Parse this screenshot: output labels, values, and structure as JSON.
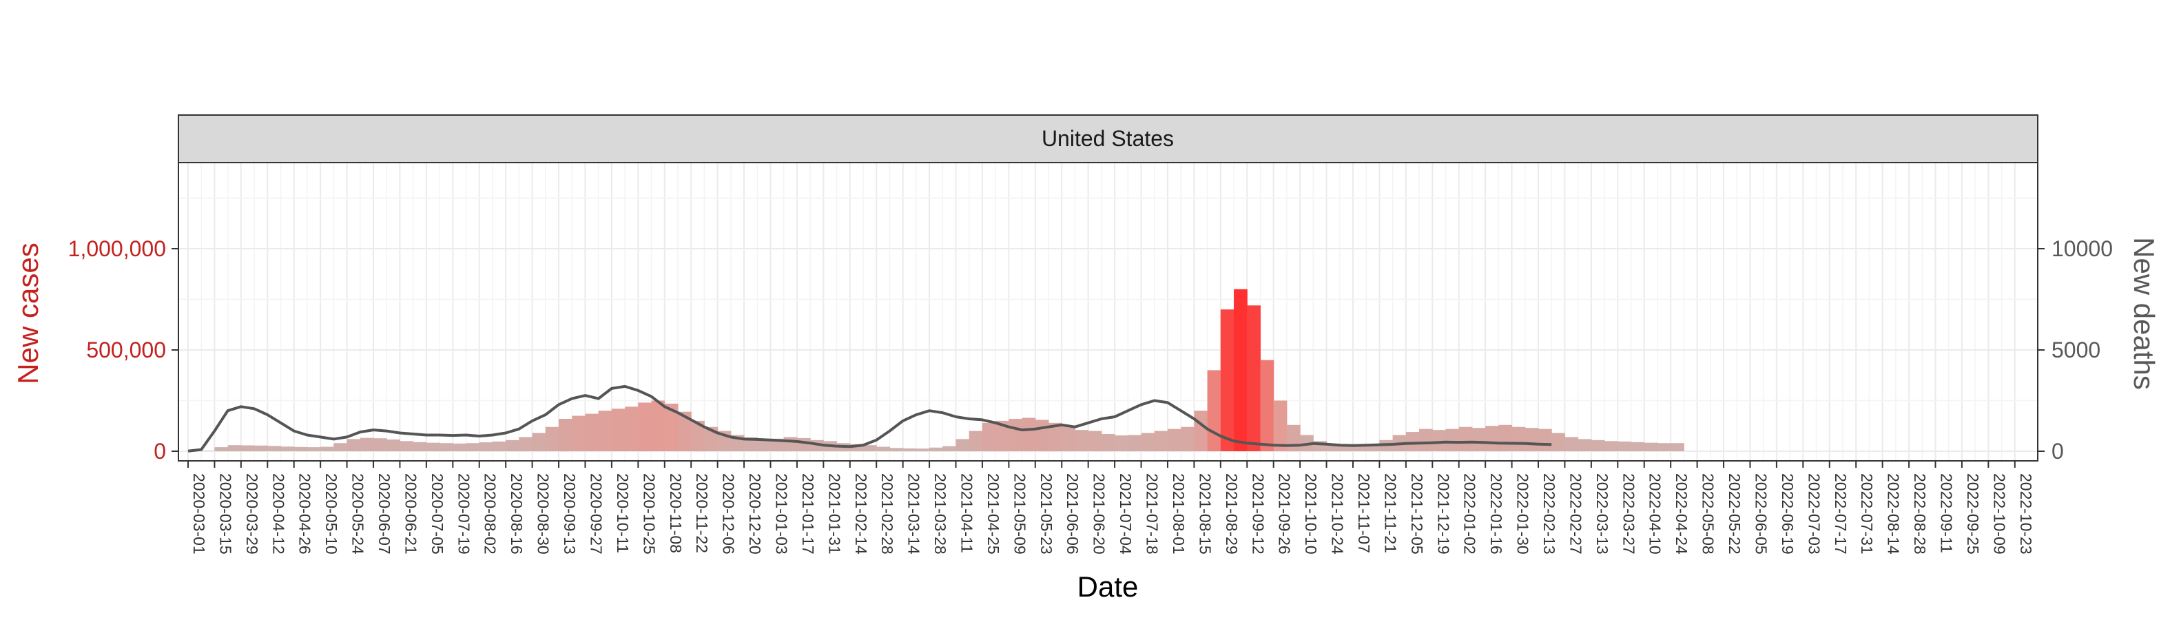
{
  "chart_data": {
    "type": "bar",
    "facet_label": "United States",
    "xlabel": "Date",
    "ylabel_left": "New cases",
    "ylabel_right": "New deaths",
    "x_range": [
      "2020-03-01",
      "2022-10-30"
    ],
    "ylim_left": [
      0,
      1400000
    ],
    "ylim_right": [
      0,
      14000
    ],
    "y_ticks_left": [
      0,
      500000,
      1000000
    ],
    "y_tick_labels_left": [
      "0",
      "500,000",
      "1,000,000"
    ],
    "y_ticks_right": [
      0,
      5000,
      10000
    ],
    "y_tick_labels_right": [
      "0",
      "5000",
      "10000"
    ],
    "x_tick_labels": [
      "2020-03-01",
      "2020-03-15",
      "2020-03-29",
      "2020-04-12",
      "2020-04-26",
      "2020-05-10",
      "2020-05-24",
      "2020-06-07",
      "2020-06-21",
      "2020-07-05",
      "2020-07-19",
      "2020-08-02",
      "2020-08-16",
      "2020-08-30",
      "2020-09-13",
      "2020-09-27",
      "2020-10-11",
      "2020-10-25",
      "2020-11-08",
      "2020-11-22",
      "2020-12-06",
      "2020-12-20",
      "2021-01-03",
      "2021-01-17",
      "2021-01-31",
      "2021-02-14",
      "2021-02-28",
      "2021-03-14",
      "2021-03-28",
      "2021-04-11",
      "2021-04-25",
      "2021-05-09",
      "2021-05-23",
      "2021-06-06",
      "2021-06-20",
      "2021-07-04",
      "2021-07-18",
      "2021-08-01",
      "2021-08-15",
      "2021-08-29",
      "2021-09-12",
      "2021-09-26",
      "2021-10-10",
      "2021-10-24",
      "2021-11-07",
      "2021-11-21",
      "2021-12-05",
      "2021-12-19",
      "2022-01-02",
      "2022-01-16",
      "2022-01-30",
      "2022-02-13",
      "2022-02-27",
      "2022-03-13",
      "2022-03-27",
      "2022-04-10",
      "2022-04-24",
      "2022-05-08",
      "2022-05-22",
      "2022-06-05",
      "2022-06-19",
      "2022-07-03",
      "2022-07-17",
      "2022-07-31",
      "2022-08-14",
      "2022-08-28",
      "2022-09-11",
      "2022-09-25",
      "2022-10-09",
      "2022-10-23"
    ],
    "series": [
      {
        "name": "New cases",
        "kind": "bar",
        "resolution": "weekly average (approximate)",
        "start": "2020-03-01",
        "step_days": 7,
        "values": [
          300,
          2000,
          20000,
          30000,
          29000,
          28000,
          26000,
          23000,
          21000,
          20000,
          22000,
          40000,
          60000,
          66000,
          64000,
          58000,
          50000,
          45000,
          42000,
          40000,
          38000,
          40000,
          44000,
          48000,
          55000,
          70000,
          90000,
          120000,
          160000,
          175000,
          185000,
          200000,
          210000,
          220000,
          240000,
          250000,
          235000,
          195000,
          150000,
          120000,
          100000,
          80000,
          68000,
          60000,
          62000,
          70000,
          65000,
          55000,
          50000,
          40000,
          35000,
          30000,
          22000,
          16000,
          14000,
          13000,
          18000,
          25000,
          60000,
          100000,
          140000,
          150000,
          160000,
          165000,
          155000,
          140000,
          125000,
          105000,
          100000,
          85000,
          78000,
          80000,
          90000,
          100000,
          110000,
          120000,
          200000,
          400000,
          700000,
          800000,
          720000,
          450000,
          250000,
          130000,
          80000,
          50000,
          38000,
          32000,
          30000,
          35000,
          55000,
          80000,
          95000,
          110000,
          105000,
          110000,
          120000,
          115000,
          125000,
          130000,
          120000,
          115000,
          110000,
          90000,
          70000,
          60000,
          55000,
          50000,
          48000,
          45000,
          42000,
          40000,
          40000
        ]
      },
      {
        "name": "New deaths",
        "kind": "line",
        "resolution": "weekly average (approximate)",
        "start": "2020-03-01",
        "step_days": 7,
        "values": [
          10,
          80,
          1000,
          2000,
          2200,
          2100,
          1800,
          1400,
          1000,
          800,
          700,
          600,
          700,
          950,
          1050,
          1000,
          900,
          850,
          800,
          800,
          780,
          800,
          750,
          800,
          900,
          1100,
          1500,
          1800,
          2300,
          2600,
          2750,
          2600,
          3100,
          3200,
          3000,
          2700,
          2200,
          1900,
          1550,
          1200,
          900,
          700,
          600,
          580,
          550,
          520,
          480,
          400,
          300,
          250,
          230,
          300,
          550,
          1000,
          1500,
          1800,
          2000,
          1900,
          1700,
          1600,
          1550,
          1400,
          1200,
          1050,
          1100,
          1200,
          1300,
          1200,
          1400,
          1600,
          1700,
          2000,
          2300,
          2500,
          2400,
          2000,
          1600,
          1100,
          750,
          500,
          400,
          350,
          300,
          280,
          300,
          380,
          350,
          300,
          280,
          300,
          320,
          340,
          380,
          400,
          420,
          450,
          440,
          450,
          430,
          400,
          390,
          380,
          350,
          330
        ]
      }
    ],
    "colors": {
      "left_axis": "#c4211f",
      "right_axis": "#595959",
      "bar_low": "#cdb3b0",
      "bar_mid": "#e89890",
      "bar_high": "#ff3030",
      "death_line": "#555555",
      "strip_fill": "#d9d9d9",
      "grid": "#ebebeb"
    },
    "grid": true
  }
}
